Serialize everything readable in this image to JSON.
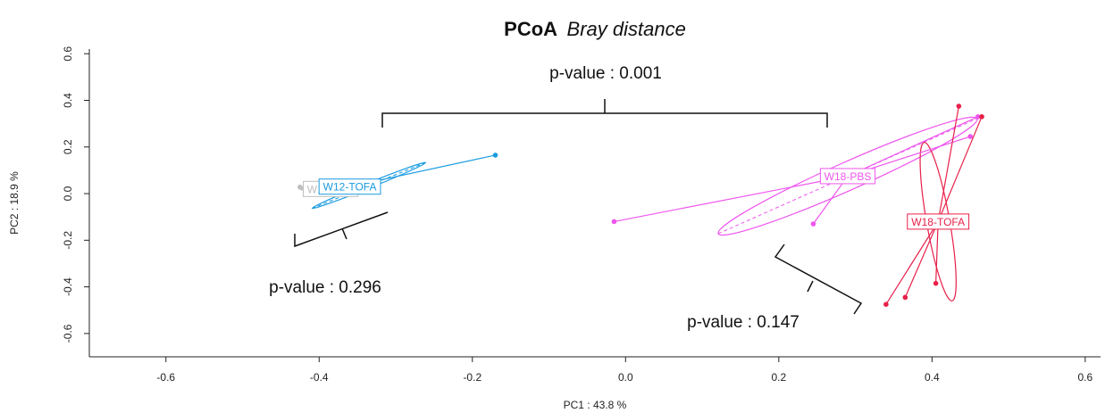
{
  "chart_data": {
    "type": "scatter",
    "title": "PCoA",
    "subtitle": "Bray distance",
    "xlabel": "PC1 : 43.8 %",
    "ylabel": "PC2 : 18.9 %",
    "xlim": [
      -0.7,
      0.62
    ],
    "ylim": [
      -0.7,
      0.62
    ],
    "xticks": [
      "-0.6",
      "-0.4",
      "-0.2",
      "0.0",
      "0.2",
      "0.4",
      "0.6"
    ],
    "yticks": [
      "-0.6",
      "-0.4",
      "-0.2",
      "0.0",
      "0.2",
      "0.4",
      "0.6"
    ],
    "grid": false,
    "groups": [
      {
        "name": "W12-PBS",
        "label_text": "W12-PBS",
        "color": "#bfbfbf",
        "centroid": [
          -0.385,
          0.02
        ],
        "points": [
          [
            -0.425,
            0.028
          ],
          [
            -0.415,
            0.026
          ],
          [
            -0.4,
            0.025
          ],
          [
            -0.39,
            0.022
          ]
        ],
        "ellipse": {
          "cx": -0.385,
          "cy": 0.02,
          "rx": 0.04,
          "ry": 0.012,
          "angle": 0
        }
      },
      {
        "name": "W12-TOFA",
        "label_text": "W12-TOFA",
        "color": "#1a9be0",
        "centroid": [
          -0.36,
          0.03
        ],
        "points": [
          [
            -0.41,
            0.015
          ],
          [
            -0.17,
            0.165
          ],
          [
            -0.395,
            0.025
          ],
          [
            -0.38,
            0.03
          ]
        ],
        "ellipse": {
          "cx": -0.335,
          "cy": 0.035,
          "rx": 0.08,
          "ry": 0.011,
          "angle": 22
        }
      },
      {
        "name": "W18-PBS",
        "label_text": "W18-PBS",
        "color": "#ee55ee",
        "centroid": [
          0.29,
          0.075
        ],
        "points": [
          [
            -0.015,
            -0.12
          ],
          [
            0.245,
            -0.13
          ],
          [
            0.45,
            0.245
          ],
          [
            0.46,
            0.33
          ]
        ],
        "ellipse": {
          "cx": 0.29,
          "cy": 0.075,
          "rx": 0.185,
          "ry": 0.06,
          "angle": 24
        }
      },
      {
        "name": "W18-TOFA",
        "label_text": "W18-TOFA",
        "color": "#e8204a",
        "centroid": [
          0.408,
          -0.12
        ],
        "points": [
          [
            0.435,
            0.375
          ],
          [
            0.465,
            0.33
          ],
          [
            0.34,
            -0.475
          ],
          [
            0.365,
            -0.445
          ],
          [
            0.405,
            -0.385
          ]
        ],
        "ellipse": {
          "cx": 0.408,
          "cy": -0.12,
          "rx": 0.015,
          "ry": 0.345,
          "angle": 10
        }
      }
    ],
    "annotations": [
      {
        "text": "p-value : 0.001"
      },
      {
        "text": "p-value : 0.296"
      },
      {
        "text": "p-value : 0.147"
      }
    ]
  }
}
